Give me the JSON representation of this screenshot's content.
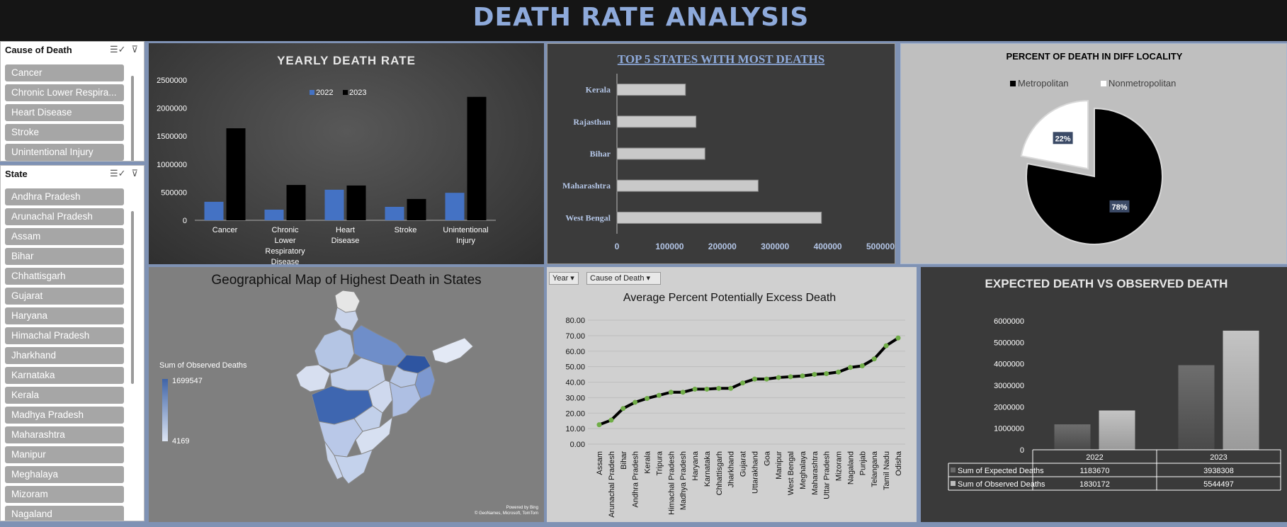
{
  "dashboard": {
    "title": "DEATH RATE ANALYSIS"
  },
  "slicer_cause": {
    "header": "Cause of Death",
    "items": [
      "Cancer",
      "Chronic Lower Respira...",
      "Heart Disease",
      "Stroke",
      "Unintentional Injury"
    ]
  },
  "slicer_state": {
    "header": "State",
    "items": [
      "Andhra Pradesh",
      "Arunachal Pradesh",
      "Assam",
      "Bihar",
      "Chhattisgarh",
      "Gujarat",
      "Haryana",
      "Himachal Pradesh",
      "Jharkhand",
      "Karnataka",
      "Kerala",
      "Madhya Pradesh",
      "Maharashtra",
      "Manipur",
      "Meghalaya",
      "Mizoram",
      "Nagaland"
    ]
  },
  "icons": {
    "multiselect": "multi-select-icon",
    "clear_filter": "clear-filter-icon",
    "dropdown": "dropdown-arrow-icon"
  },
  "colors": {
    "series_2022": "#4472c4",
    "series_2023": "#000000",
    "line": "#000000",
    "marker": "#70ad47",
    "title_blue": "#8eaadb"
  },
  "map_panel": {
    "title": "Geographical Map of Highest Death in States",
    "legend_title": "Sum of Observed Deaths",
    "legend_max": "1699547",
    "legend_min": "4169",
    "credit_1": "Powered by Bing",
    "credit_2": "© GeoNames, Microsoft, TomTom"
  },
  "line_filters": {
    "year": "Year",
    "cause": "Cause of Death"
  },
  "chart_data": [
    {
      "type": "bar",
      "title": "YEARLY DEATH RATE",
      "categories": [
        "Cancer",
        "Chronic Lower Respiratory Disease",
        "Heart Disease",
        "Stroke",
        "Unintentional Injury"
      ],
      "series": [
        {
          "name": "2022",
          "values": [
            330000,
            190000,
            545000,
            240000,
            490000
          ]
        },
        {
          "name": "2023",
          "values": [
            1640000,
            630000,
            620000,
            380000,
            2200000
          ]
        }
      ],
      "ylim": [
        0,
        2500000
      ],
      "yticks": [
        "0",
        "500000",
        "1000000",
        "1500000",
        "2000000",
        "2500000"
      ],
      "legend": "top"
    },
    {
      "type": "bar",
      "orientation": "horizontal",
      "title": "TOP 5 STATES WITH MOST DEATHS",
      "categories": [
        "Kerala",
        "Rajasthan",
        "Bihar",
        "Maharashtra",
        "West Bengal"
      ],
      "values": [
        130000,
        150000,
        167000,
        268000,
        388000
      ],
      "xlim": [
        0,
        500000
      ],
      "xticks": [
        "0",
        "100000",
        "200000",
        "300000",
        "400000",
        "500000"
      ]
    },
    {
      "type": "pie",
      "title": "PERCENT OF DEATH IN DIFF LOCALITY",
      "labels": [
        "Metropolitan",
        "Nonmetropolitan"
      ],
      "values": [
        78,
        22
      ],
      "value_labels": [
        "78%",
        "22%"
      ],
      "colors": [
        "#000000",
        "#ffffff"
      ],
      "legend": "top"
    },
    {
      "type": "line",
      "title": "Average Percent Potentially Excess Death",
      "categories": [
        "Assam",
        "Arunachal Pradesh",
        "Bihar",
        "Andhra Pradesh",
        "Kerala",
        "Tripura",
        "Himachal Pradesh",
        "Madhya Pradesh",
        "Haryana",
        "Karnataka",
        "Chhattisgarh",
        "Jharkhand",
        "Gujarat",
        "Uttarakhand",
        "Goa",
        "Manipur",
        "West Bengal",
        "Meghalaya",
        "Maharashtra",
        "Uttar Pradesh",
        "Mizoram",
        "Nagaland",
        "Punjab",
        "Telangana",
        "Tamil Nadu",
        "Odisha"
      ],
      "values": [
        12.5,
        15.5,
        23,
        27,
        29.5,
        31.5,
        33.5,
        33.5,
        35.5,
        35.5,
        36,
        36,
        39.5,
        42,
        42,
        43,
        43.5,
        44,
        45,
        45.5,
        46.5,
        49.5,
        50.5,
        55,
        63.5,
        68.5
      ],
      "ylim": [
        0,
        80
      ],
      "yticks": [
        "0.00",
        "10.00",
        "20.00",
        "30.00",
        "40.00",
        "50.00",
        "60.00",
        "70.00",
        "80.00"
      ]
    },
    {
      "type": "bar",
      "title": "EXPECTED DEATH VS OBSERVED DEATH",
      "categories": [
        "2022",
        "2023"
      ],
      "series": [
        {
          "name": "Sum of Expected Deaths",
          "values": [
            1183670,
            3938308
          ]
        },
        {
          "name": "Sum of Observed Deaths",
          "values": [
            1830172,
            5544497
          ]
        }
      ],
      "table": [
        [
          "1183670",
          "3938308"
        ],
        [
          "1830172",
          "5544497"
        ]
      ],
      "ylim": [
        0,
        6000000
      ],
      "yticks": [
        "0",
        "1000000",
        "2000000",
        "3000000",
        "4000000",
        "5000000",
        "6000000"
      ]
    }
  ]
}
